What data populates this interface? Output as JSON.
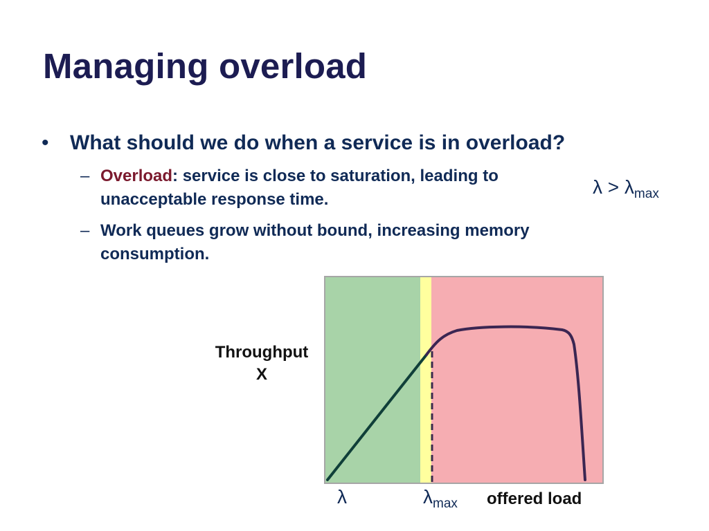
{
  "slide": {
    "title": "Managing overload",
    "bullet": "What should we do when a service is in overload?",
    "bullet_symbol": "•",
    "dash_symbol": "–",
    "sub_bullets": [
      {
        "keyword": "Overload",
        "text": ": service is close to saturation, leading to unacceptable response time."
      },
      {
        "text": "Work queues grow without bound, increasing memory consumption."
      }
    ],
    "condition": {
      "lhs": "λ",
      "op": ">",
      "rhs": "λ",
      "rhs_sub": "max"
    }
  },
  "colors": {
    "title": "#1c1c52",
    "text": "#102a56",
    "keyword": "#7b1a2e",
    "safe_region": "#a8d3a8",
    "transition_region": "#ffff9e",
    "overload_region": "#f6adb2",
    "curve_rising": "#103f39",
    "curve_overload": "#3b2652"
  },
  "diagram": {
    "y_label_line1": "Throughput",
    "y_label_line2": "X",
    "x_label": "offered load",
    "tick_lambda": "λ",
    "tick_lambda_max": "λ",
    "tick_lambda_max_sub": "max",
    "regions": [
      "safe",
      "transition",
      "overload"
    ],
    "curve": "throughput rises linearly up to λmax, plateaus in overload, then collapses"
  }
}
